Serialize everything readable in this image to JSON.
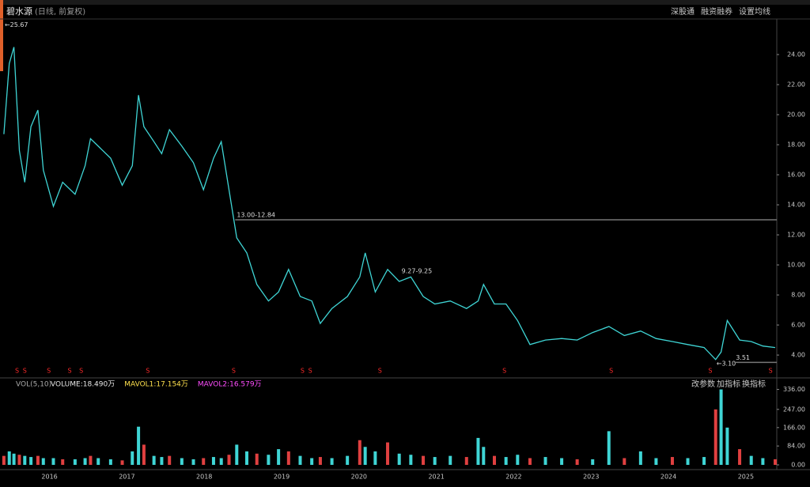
{
  "ui": {
    "stock_name": "碧水源",
    "mode": "(日线, 前复权)",
    "toolbar_right": [
      "深股通",
      "融资融券",
      "设置均线"
    ],
    "vol_buttons": [
      "改参数",
      "加指标",
      "换指标"
    ]
  },
  "chart_data": [
    {
      "type": "line",
      "color": "#3fd5d5",
      "x": [
        2015.41,
        2015.48,
        2015.54,
        2015.61,
        2015.68,
        2015.76,
        2015.85,
        2015.92,
        2016.05,
        2016.17,
        2016.33,
        2016.46,
        2016.53,
        2016.63,
        2016.79,
        2016.94,
        2017.07,
        2017.15,
        2017.22,
        2017.35,
        2017.45,
        2017.55,
        2017.71,
        2017.86,
        2017.99,
        2018.12,
        2018.22,
        2018.32,
        2018.42,
        2018.55,
        2018.68,
        2018.83,
        2018.96,
        2019.09,
        2019.24,
        2019.39,
        2019.5,
        2019.65,
        2019.85,
        2020.01,
        2020.08,
        2020.21,
        2020.37,
        2020.52,
        2020.67,
        2020.83,
        2020.98,
        2021.18,
        2021.39,
        2021.54,
        2021.61,
        2021.75,
        2021.9,
        2022.05,
        2022.21,
        2022.41,
        2022.62,
        2022.82,
        2023.02,
        2023.23,
        2023.43,
        2023.64,
        2023.84,
        2024.05,
        2024.25,
        2024.46,
        2024.61,
        2024.68,
        2024.76,
        2024.92,
        2025.07,
        2025.22,
        2025.38
      ],
      "values": [
        18.7,
        23.4,
        24.5,
        17.6,
        15.5,
        19.2,
        20.3,
        16.3,
        13.9,
        15.5,
        14.7,
        16.6,
        18.4,
        17.9,
        17.1,
        15.3,
        16.6,
        21.3,
        19.2,
        18.2,
        17.4,
        19.0,
        17.9,
        16.8,
        15.0,
        17.1,
        18.2,
        15.0,
        11.8,
        10.8,
        8.7,
        7.6,
        8.2,
        9.7,
        7.9,
        7.6,
        6.1,
        7.1,
        7.9,
        9.2,
        10.8,
        8.2,
        9.7,
        8.9,
        9.2,
        7.9,
        7.4,
        7.6,
        7.1,
        7.6,
        8.7,
        7.4,
        7.4,
        6.3,
        4.7,
        5.0,
        5.1,
        5.0,
        5.5,
        5.9,
        5.3,
        5.6,
        5.1,
        4.9,
        4.7,
        4.5,
        3.7,
        4.2,
        6.3,
        5.0,
        4.9,
        4.6,
        4.5
      ],
      "xlim": [
        2015.36,
        2025.4
      ],
      "xticks": [
        2016,
        2017,
        2018,
        2019,
        2020,
        2021,
        2022,
        2023,
        2024,
        2025
      ],
      "ylim": [
        2.9,
        26
      ],
      "yticks": [
        {
          "value": 4,
          "label": "4.00"
        },
        {
          "value": 6,
          "label": "6.00"
        },
        {
          "value": 8,
          "label": "8.00"
        },
        {
          "value": 10,
          "label": "10.00"
        },
        {
          "value": 12,
          "label": "12.00"
        },
        {
          "value": 14,
          "label": "14.00"
        },
        {
          "value": 16,
          "label": "16.00"
        },
        {
          "value": 18,
          "label": "18.00"
        },
        {
          "value": 20,
          "label": "20.00"
        },
        {
          "value": 22,
          "label": "22.00"
        },
        {
          "value": 24,
          "label": "24.00"
        }
      ],
      "annotations": [
        {
          "label": "←25.67",
          "x": 2015.4,
          "y": 25.67,
          "line": false
        },
        {
          "label": "13.00-12.84",
          "x": 2018.4,
          "y": 13.0,
          "line": true
        },
        {
          "label": "9.27-9.25",
          "x": 2020.53,
          "y": 9.27,
          "line": false
        },
        {
          "label": "←3.10",
          "x": 2024.6,
          "y": 3.1,
          "line": false
        },
        {
          "label": "3.51",
          "x": 2024.85,
          "y": 3.51,
          "line": true
        }
      ],
      "signal_label": "S",
      "signal_color": "#ff2a2a",
      "signal_x": [
        2015.58,
        2015.68,
        2015.99,
        2016.26,
        2016.41,
        2017.27,
        2018.38,
        2019.27,
        2019.37,
        2020.27,
        2021.88,
        2023.26,
        2024.54,
        2025.32
      ]
    },
    {
      "type": "bar",
      "title": "VOL(5,10)",
      "color": "#3fd5d5",
      "legend": [
        {
          "label": "VOLUME:18.490万",
          "color": "#e6e6e6"
        },
        {
          "label": "MAVOL1:17.154万",
          "color": "#ffe14d"
        },
        {
          "label": "MAVOL2:16.579万",
          "color": "#ff4dff"
        }
      ],
      "x": [
        2015.41,
        2015.48,
        2015.54,
        2015.61,
        2015.68,
        2015.76,
        2015.85,
        2015.92,
        2016.05,
        2016.17,
        2016.33,
        2016.46,
        2016.53,
        2016.63,
        2016.79,
        2016.94,
        2017.07,
        2017.15,
        2017.22,
        2017.35,
        2017.45,
        2017.55,
        2017.71,
        2017.86,
        2017.99,
        2018.12,
        2018.22,
        2018.32,
        2018.42,
        2018.55,
        2018.68,
        2018.83,
        2018.96,
        2019.09,
        2019.24,
        2019.39,
        2019.5,
        2019.65,
        2019.85,
        2020.01,
        2020.08,
        2020.21,
        2020.37,
        2020.52,
        2020.67,
        2020.83,
        2020.98,
        2021.18,
        2021.39,
        2021.54,
        2021.61,
        2021.75,
        2021.9,
        2022.05,
        2022.21,
        2022.41,
        2022.62,
        2022.82,
        2023.02,
        2023.23,
        2023.43,
        2023.64,
        2023.84,
        2024.05,
        2024.25,
        2024.46,
        2024.61,
        2024.68,
        2024.76,
        2024.92,
        2025.07,
        2025.22,
        2025.38
      ],
      "values": [
        40,
        60,
        50,
        45,
        40,
        35,
        40,
        30,
        30,
        25,
        25,
        30,
        40,
        30,
        25,
        20,
        60,
        170,
        90,
        40,
        35,
        40,
        30,
        25,
        30,
        35,
        30,
        45,
        90,
        60,
        50,
        45,
        70,
        60,
        40,
        30,
        35,
        30,
        40,
        110,
        80,
        60,
        100,
        50,
        45,
        40,
        35,
        40,
        35,
        120,
        80,
        40,
        35,
        45,
        30,
        35,
        30,
        25,
        25,
        150,
        30,
        60,
        30,
        35,
        30,
        35,
        247,
        336,
        166,
        70,
        40,
        30,
        25
      ],
      "xlim": [
        2015.36,
        2025.4
      ],
      "ylim": [
        0,
        345
      ],
      "yticks": [
        {
          "value": 0,
          "label": "0.00"
        },
        {
          "value": 84,
          "label": "84.00"
        },
        {
          "value": 166,
          "label": "166.00"
        },
        {
          "value": 247,
          "label": "247.00"
        },
        {
          "value": 336,
          "label": "336.00"
        }
      ]
    }
  ]
}
